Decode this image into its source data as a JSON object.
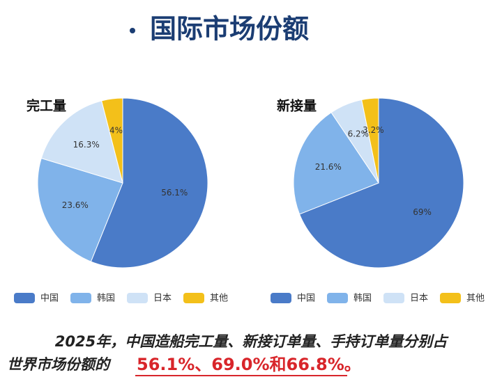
{
  "header": {
    "title": "国际市场份额"
  },
  "chart_data": [
    {
      "type": "pie",
      "title": "完工量",
      "categories": [
        "中国",
        "韩国",
        "日本",
        "其他"
      ],
      "values": [
        56.1,
        23.6,
        16.3,
        4
      ],
      "value_labels": [
        "56.1%",
        "23.6%",
        "16.3%",
        "4%"
      ],
      "colors": [
        "#4a7bc8",
        "#80b3ea",
        "#cfe2f6",
        "#f3c01a"
      ]
    },
    {
      "type": "pie",
      "title": "新接量",
      "categories": [
        "中国",
        "韩国",
        "日本",
        "其他"
      ],
      "values": [
        69,
        21.6,
        6.2,
        3.2
      ],
      "value_labels": [
        "69%",
        "21.6%",
        "6.2%",
        "3.2%"
      ],
      "colors": [
        "#4a7bc8",
        "#80b3ea",
        "#cfe2f6",
        "#f3c01a"
      ]
    }
  ],
  "caption": {
    "lines": [
      "2025年，中国造船完工量、新接订单量、手持订单量分别占",
      "世界市场份额的"
    ],
    "highlight": "56.1%、69.0%和66.8%。"
  }
}
